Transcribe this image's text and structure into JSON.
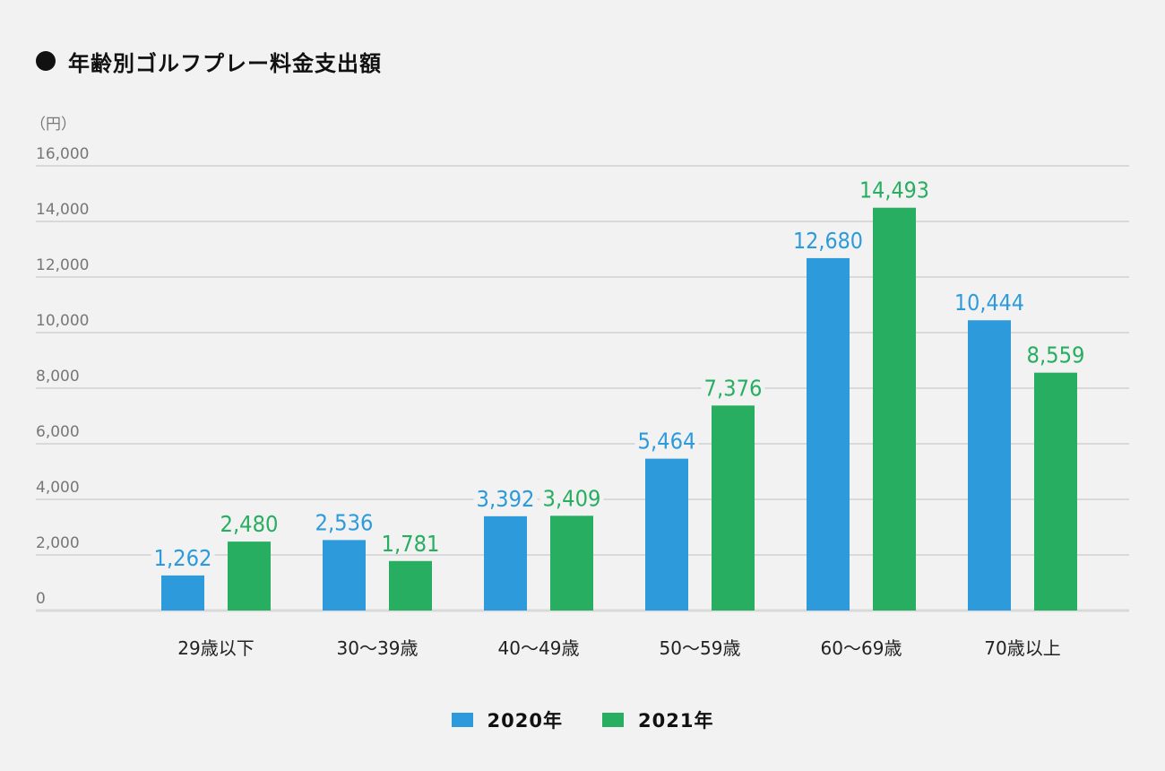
{
  "title": "年齢別ゴルフプレー料金支出額",
  "chart_data": {
    "type": "bar",
    "title": "年齢別ゴルフプレー料金支出額",
    "ylabel": "（円）",
    "xlabel": "",
    "ylim": [
      0,
      16000
    ],
    "yticks": [
      0,
      2000,
      4000,
      6000,
      8000,
      10000,
      12000,
      14000,
      16000
    ],
    "ytick_labels": [
      "0",
      "2,000",
      "4,000",
      "6,000",
      "8,000",
      "10,000",
      "12,000",
      "14,000",
      "16,000"
    ],
    "grid": true,
    "legend_position": "bottom-center",
    "categories": [
      "29歳以下",
      "30〜39歳",
      "40〜49歳",
      "50〜59歳",
      "60〜69歳",
      "70歳以上"
    ],
    "series": [
      {
        "name": "2020年",
        "color": "#2d9bdb",
        "values": [
          1262,
          2536,
          3392,
          5464,
          12680,
          10444
        ],
        "labels": [
          "1,262",
          "2,536",
          "3,392",
          "5,464",
          "12,680",
          "10,444"
        ]
      },
      {
        "name": "2021年",
        "color": "#27ae60",
        "values": [
          2480,
          1781,
          3409,
          7376,
          14493,
          8559
        ],
        "labels": [
          "2,480",
          "1,781",
          "3,409",
          "7,376",
          "14,493",
          "8,559"
        ]
      }
    ]
  },
  "colors": {
    "background": "#f2f2f2",
    "grid": "#d9d9d9",
    "tick_text": "#777777",
    "category_text": "#222222"
  }
}
